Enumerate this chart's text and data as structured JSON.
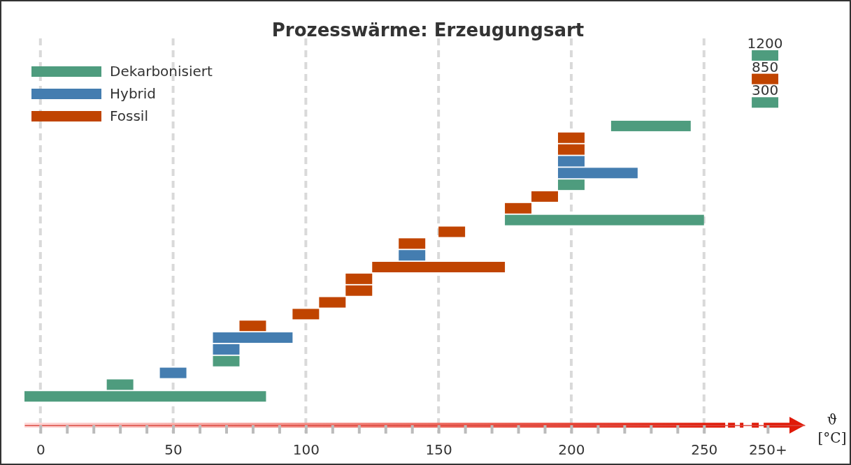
{
  "chart_data": {
    "type": "bar",
    "orientation": "horizontal",
    "title": "Prozesswärme: Erzeugungsart",
    "xlabel": "ϑ [°C]",
    "categories": [
      null,
      null,
      null,
      null,
      null,
      null,
      null,
      null,
      null,
      null,
      null,
      null,
      null,
      null,
      null,
      null,
      null,
      null,
      null,
      null,
      null,
      null,
      null,
      null,
      null,
      null,
      null,
      null,
      null,
      null,
      null,
      null,
      null
    ],
    "series": [
      {
        "name": "Dekarbonisiert",
        "color": "#4e9c7e",
        "base": [
          null,
          268,
          null,
          null,
          null,
          268,
          null,
          215,
          null,
          null,
          null,
          null,
          195,
          null,
          null,
          175,
          null,
          null,
          null,
          null,
          null,
          null,
          null,
          null,
          null,
          null,
          null,
          65,
          null,
          25,
          -6,
          null,
          null
        ],
        "values": [
          null,
          10,
          null,
          null,
          null,
          10,
          null,
          30,
          null,
          null,
          null,
          null,
          10,
          null,
          null,
          75,
          null,
          null,
          null,
          null,
          null,
          null,
          null,
          null,
          null,
          null,
          null,
          10,
          null,
          10,
          91,
          null,
          null
        ]
      },
      {
        "name": "Hybrid",
        "color": "#447db0",
        "base": [
          null,
          null,
          null,
          null,
          null,
          null,
          null,
          null,
          null,
          null,
          195,
          195,
          null,
          null,
          null,
          null,
          null,
          null,
          135,
          null,
          null,
          null,
          null,
          null,
          null,
          65,
          65,
          null,
          45,
          null,
          null,
          null,
          null
        ],
        "values": [
          null,
          null,
          null,
          null,
          null,
          null,
          null,
          null,
          null,
          null,
          10,
          30,
          null,
          null,
          null,
          null,
          null,
          null,
          10,
          null,
          null,
          null,
          null,
          null,
          null,
          30,
          10,
          null,
          10,
          null,
          null,
          null,
          null
        ]
      },
      {
        "name": "Fossil",
        "color": "#c04400",
        "base": [
          null,
          null,
          null,
          268,
          null,
          null,
          null,
          null,
          195,
          195,
          null,
          null,
          null,
          185,
          175,
          null,
          150,
          135,
          null,
          125,
          115,
          115,
          105,
          95,
          75,
          null,
          null,
          null,
          null,
          null,
          null,
          null,
          null
        ],
        "values": [
          null,
          null,
          null,
          10,
          null,
          null,
          null,
          null,
          10,
          10,
          null,
          null,
          null,
          10,
          10,
          null,
          10,
          10,
          null,
          50,
          10,
          10,
          10,
          10,
          10,
          null,
          null,
          null,
          null,
          null,
          null,
          null,
          null
        ]
      }
    ],
    "xlim": [
      -6,
      288
    ],
    "xticks": [
      0,
      {
        "value": 10,
        "label": null
      },
      {
        "value": 20,
        "label": null
      },
      {
        "value": 30,
        "label": null
      },
      {
        "value": 40,
        "label": null
      },
      50,
      {
        "value": 60,
        "label": null
      },
      {
        "value": 70,
        "label": null
      },
      {
        "value": 80,
        "label": null
      },
      {
        "value": 90,
        "label": null
      },
      100,
      {
        "value": 110,
        "label": null
      },
      {
        "value": 120,
        "label": null
      },
      {
        "value": 130,
        "label": null
      },
      {
        "value": 140,
        "label": null
      },
      150,
      {
        "value": 160,
        "label": null
      },
      {
        "value": 170,
        "label": null
      },
      {
        "value": 180,
        "label": null
      },
      {
        "value": 190,
        "label": null
      },
      200,
      {
        "value": 210,
        "label": null
      },
      {
        "value": 220,
        "label": null
      },
      {
        "value": 230,
        "label": null
      },
      {
        "value": 240,
        "label": null
      },
      250,
      {
        "value": 274,
        "label": "250+"
      }
    ],
    "grid": "x",
    "legend": "top left",
    "annotations": [
      "1200",
      "850",
      "300"
    ]
  }
}
